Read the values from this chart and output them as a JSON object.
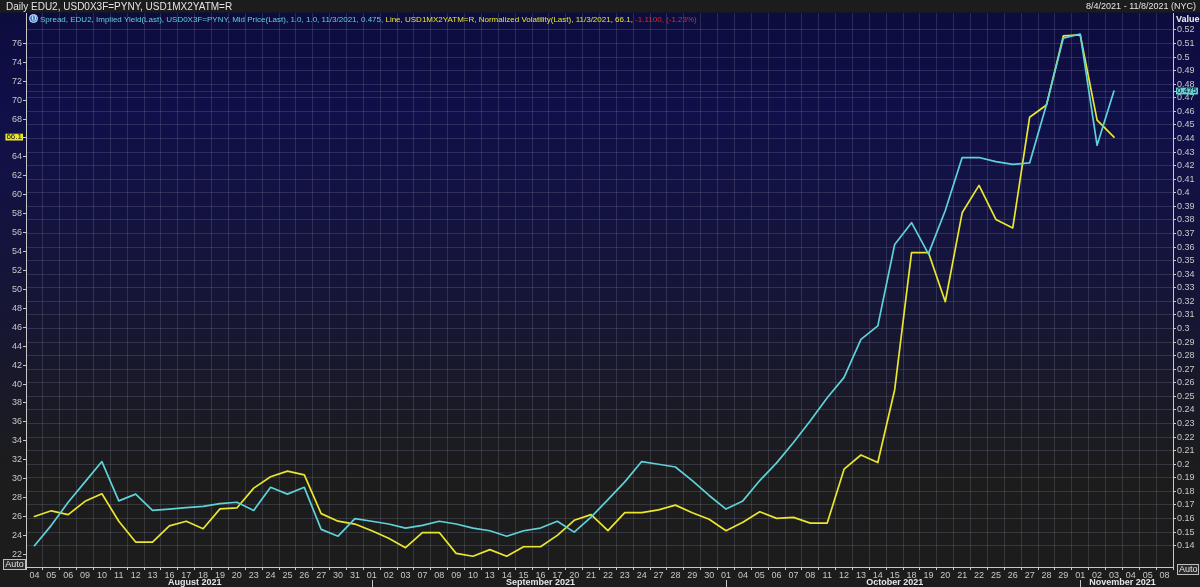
{
  "chart_data": {
    "type": "line",
    "title": "Daily EDU2, USD0X3F=PYNY, USD1MX2YATM=R",
    "y2label": "Value",
    "categories": [
      "04",
      "05",
      "06",
      "09",
      "10",
      "11",
      "12",
      "13",
      "16",
      "17",
      "18",
      "19",
      "20",
      "23",
      "24",
      "25",
      "26",
      "27",
      "30",
      "31",
      "01",
      "02",
      "03",
      "07",
      "08",
      "09",
      "10",
      "13",
      "14",
      "15",
      "16",
      "17",
      "20",
      "21",
      "22",
      "23",
      "24",
      "27",
      "28",
      "29",
      "30",
      "01",
      "04",
      "05",
      "06",
      "07",
      "08",
      "11",
      "12",
      "13",
      "14",
      "15",
      "18",
      "19",
      "20",
      "21",
      "22",
      "25",
      "26",
      "27",
      "28",
      "29",
      "01",
      "02",
      "03",
      "04",
      "05",
      "08"
    ],
    "series": [
      {
        "name": "Spread, EDU2, Implied Yield(Last), USD0X3F=PYNY, Mid Price(Last),  1.0, 1.0, 11/3/2021, 0.475,",
        "color": "#5ed2d8",
        "axis": "y2",
        "values": [
          0.14,
          0.155,
          0.172,
          0.187,
          0.202,
          0.173,
          0.178,
          0.166,
          0.167,
          0.168,
          0.169,
          0.171,
          0.172,
          0.166,
          0.183,
          0.178,
          0.183,
          0.152,
          0.147,
          0.16,
          0.158,
          0.156,
          0.153,
          0.155,
          0.158,
          0.156,
          0.153,
          0.151,
          0.147,
          0.151,
          0.153,
          0.158,
          0.15,
          0.161,
          0.174,
          0.187,
          0.202,
          0.2,
          0.198,
          0.188,
          0.177,
          0.167,
          0.173,
          0.188,
          0.201,
          0.216,
          0.232,
          0.249,
          0.264,
          0.292,
          0.302,
          0.362,
          0.378,
          0.355,
          0.387,
          0.426,
          0.426,
          0.423,
          0.421,
          0.422,
          0.465,
          0.514,
          0.517,
          0.435,
          0.475,
          null,
          null,
          null
        ]
      },
      {
        "name": "Line, USD1MX2YATM=R, Normalized Volatility(Last), 11/3/2021, 66.1,",
        "color": "#e8e62e",
        "axis": "y",
        "values": [
          26.0,
          26.6,
          26.2,
          27.6,
          28.4,
          25.5,
          23.3,
          23.3,
          25.0,
          25.5,
          24.7,
          26.8,
          26.9,
          29.0,
          30.2,
          30.8,
          30.4,
          26.3,
          25.5,
          25.2,
          24.5,
          23.7,
          22.7,
          24.3,
          24.3,
          22.1,
          21.8,
          22.5,
          21.8,
          22.8,
          22.8,
          24.0,
          25.6,
          26.2,
          24.5,
          26.4,
          26.4,
          26.7,
          27.2,
          26.4,
          25.7,
          24.5,
          25.4,
          26.5,
          25.8,
          25.9,
          25.3,
          25.3,
          31.0,
          32.5,
          31.7,
          39.4,
          53.9,
          53.9,
          48.7,
          58.1,
          61.0,
          57.4,
          56.5,
          68.2,
          69.5,
          76.8,
          76.9,
          67.9,
          66.1,
          null,
          null,
          null
        ]
      }
    ],
    "ylim": [
      20.66,
      79.22
    ],
    "yticks": [
      22,
      24,
      26,
      28,
      30,
      32,
      34,
      36,
      38,
      40,
      42,
      44,
      46,
      48,
      50,
      52,
      54,
      56,
      58,
      60,
      62,
      64,
      66.1,
      68,
      70,
      72,
      74,
      76
    ],
    "y2lim": [
      0.1243,
      0.5325
    ],
    "y2ticks": [
      0.14,
      0.15,
      0.16,
      0.17,
      0.18,
      0.19,
      0.2,
      0.21,
      0.22,
      0.23,
      0.24,
      0.25,
      0.26,
      0.27,
      0.28,
      0.29,
      0.3,
      0.31,
      0.32,
      0.33,
      0.34,
      0.35,
      0.36,
      0.37,
      0.38,
      0.39,
      0.4,
      0.41,
      0.42,
      0.43,
      0.44,
      0.45,
      0.46,
      0.47,
      0.475,
      0.48,
      0.49,
      0.5,
      0.51,
      0.52
    ],
    "grid": true,
    "legend": "top left",
    "annotations": [
      "8/4/2021 - 11/8/2021 (NYC)",
      "-1.1100, (-1.23%)",
      "Auto",
      "Auto",
      "August 2021",
      "September 2021",
      "October 2021",
      "November 2021"
    ]
  }
}
